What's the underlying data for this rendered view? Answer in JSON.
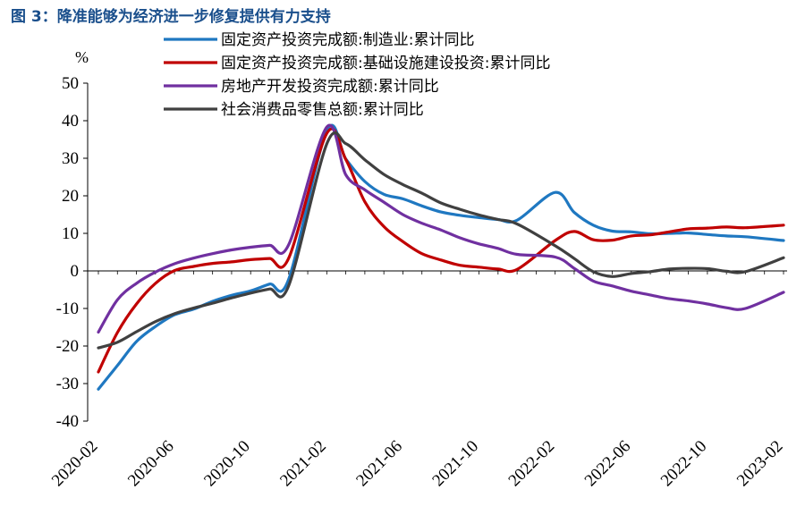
{
  "figure": {
    "title": "图 3：降准能够为经济进一步修复提供有力支持"
  },
  "chart_data": {
    "type": "line",
    "ylabel": "%",
    "xlabel": "",
    "ylim": [
      -40,
      50
    ],
    "yticks": [
      50,
      40,
      30,
      20,
      10,
      0,
      -10,
      -20,
      -30,
      -40
    ],
    "xtick_labels": [
      "2020-02",
      "2020-06",
      "2020-10",
      "2021-02",
      "2021-06",
      "2021-10",
      "2022-02",
      "2022-06",
      "2022-10",
      "2023-02"
    ],
    "x": [
      "2020-02",
      "2020-03",
      "2020-04",
      "2020-05",
      "2020-06",
      "2020-07",
      "2020-08",
      "2020-09",
      "2020-10",
      "2020-11",
      "2020-12",
      "2021-02",
      "2021-03",
      "2021-04",
      "2021-05",
      "2021-06",
      "2021-07",
      "2021-08",
      "2021-09",
      "2021-10",
      "2021-11",
      "2021-12",
      "2022-02",
      "2022-03",
      "2022-04",
      "2022-05",
      "2022-06",
      "2022-07",
      "2022-08",
      "2022-09",
      "2022-10",
      "2022-11",
      "2022-12",
      "2023-02"
    ],
    "legend_position": "top",
    "grid": false,
    "series": [
      {
        "name": "固定资产投资完成额:制造业:累计同比",
        "color": "#1f78c1",
        "values": [
          -31.5,
          -25.2,
          -18.8,
          -14.8,
          -11.7,
          -10.2,
          -8.1,
          -6.5,
          -5.3,
          -3.5,
          -2.2,
          37.3,
          29.8,
          23.8,
          20.4,
          19.2,
          17.3,
          15.7,
          14.8,
          14.2,
          13.7,
          13.5,
          20.9,
          15.6,
          12.2,
          10.6,
          10.4,
          9.9,
          10.0,
          10.1,
          9.7,
          9.3,
          9.1,
          8.1
        ]
      },
      {
        "name": "固定资产投资完成额:基础设施建设投资:累计同比",
        "color": "#c00000",
        "values": [
          -26.9,
          -16.4,
          -8.8,
          -3.3,
          0.1,
          1.2,
          2.0,
          2.4,
          3.0,
          3.3,
          3.4,
          36.6,
          29.7,
          18.4,
          11.8,
          7.8,
          4.6,
          2.9,
          1.5,
          1.0,
          0.5,
          0.4,
          8.1,
          10.5,
          8.3,
          8.2,
          9.3,
          9.6,
          10.4,
          11.2,
          11.4,
          11.7,
          11.5,
          12.2
        ]
      },
      {
        "name": "房地产开发投资完成额:累计同比",
        "color": "#7030a0",
        "values": [
          -16.3,
          -7.7,
          -3.3,
          -0.3,
          1.9,
          3.4,
          4.6,
          5.6,
          6.3,
          6.8,
          7.0,
          38.3,
          25.6,
          21.6,
          18.3,
          15.0,
          12.7,
          10.9,
          8.8,
          7.2,
          6.0,
          4.4,
          3.7,
          0.7,
          -2.7,
          -4.0,
          -5.4,
          -6.4,
          -7.4,
          -8.0,
          -8.8,
          -9.8,
          -10.0,
          -5.7
        ]
      },
      {
        "name": "社会消费品零售总额:累计同比",
        "color": "#404040",
        "values": [
          -20.5,
          -19.0,
          -16.2,
          -13.5,
          -11.4,
          -9.9,
          -8.6,
          -7.2,
          -5.9,
          -4.8,
          -3.9,
          33.8,
          33.9,
          29.6,
          25.7,
          23.0,
          20.7,
          18.1,
          16.4,
          14.9,
          13.7,
          12.5,
          6.7,
          3.3,
          -0.2,
          -1.5,
          -0.7,
          -0.2,
          0.5,
          0.7,
          0.6,
          -0.1,
          -0.2,
          3.5
        ]
      }
    ]
  }
}
